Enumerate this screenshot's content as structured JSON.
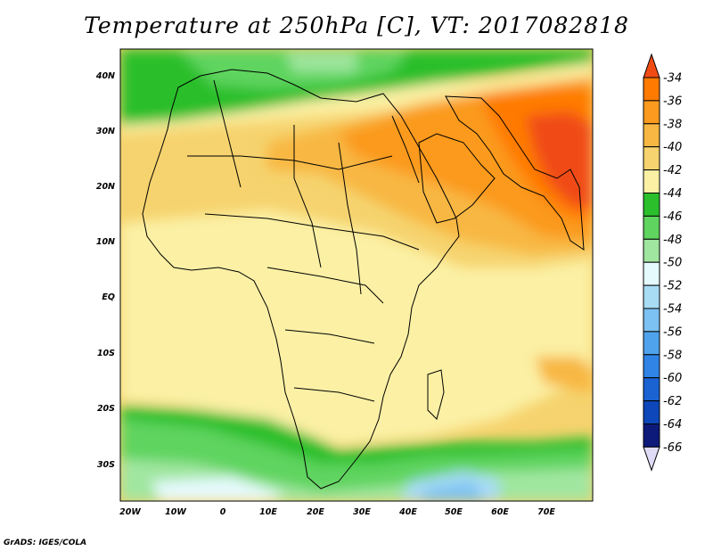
{
  "title": "Temperature at 250hPa [C], VT: 2017082818",
  "footer": "GrADS: IGES/COLA",
  "map": {
    "lat_labels": [
      "40N",
      "30N",
      "20N",
      "10N",
      "EQ",
      "10S",
      "20S",
      "30S"
    ],
    "lon_labels": [
      "20W",
      "10W",
      "0",
      "10E",
      "20E",
      "30E",
      "40E",
      "50E",
      "60E",
      "70E"
    ]
  },
  "colorbar": {
    "labels": [
      "-34",
      "-36",
      "-38",
      "-40",
      "-42",
      "-44",
      "-46",
      "-48",
      "-50",
      "-52",
      "-54",
      "-56",
      "-58",
      "-60",
      "-62",
      "-64",
      "-66"
    ],
    "colors": [
      "#f04b14",
      "#ff7a00",
      "#fb9a1e",
      "#f8b742",
      "#f6d36e",
      "#fbf0a4",
      "#2bbf2b",
      "#5fd45f",
      "#a0e6a0",
      "#e5fafd",
      "#a8dcf5",
      "#7cc2f2",
      "#4fa3ec",
      "#2f84e6",
      "#1b63d3",
      "#0e47b9",
      "#0d1a7a",
      "#e0dcf8"
    ]
  }
}
